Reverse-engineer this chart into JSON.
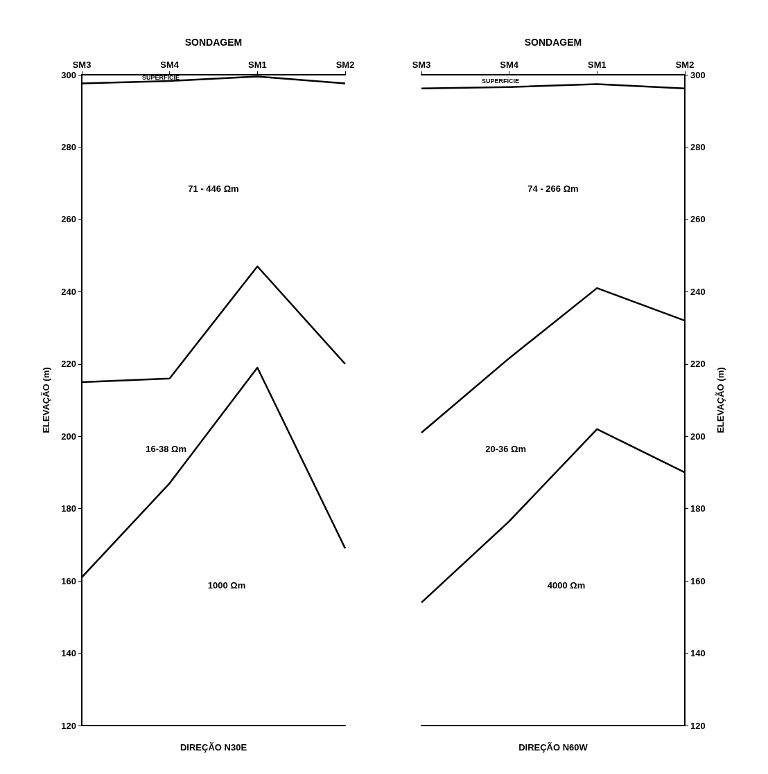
{
  "chart_data": [
    {
      "type": "line",
      "title": "SONDAGEM",
      "categories": [
        "SM3",
        "SM4",
        "SM1",
        "SM2"
      ],
      "xlabel": "DIREÇÃO N30E",
      "ylabel": "ELEVAÇÃO (m)",
      "ylim": [
        120,
        300
      ],
      "yticks": [
        120,
        140,
        160,
        180,
        200,
        220,
        240,
        260,
        280,
        300
      ],
      "marker": "none",
      "line_style": "solid",
      "grid": false,
      "series": [
        {
          "color": "#000000",
          "values": [
            297.6,
            298.3,
            299.5,
            297.6
          ]
        },
        {
          "color": "#000000",
          "values": [
            215,
            216,
            247,
            220
          ]
        },
        {
          "color": "#000000",
          "values": [
            161,
            187,
            219,
            169
          ]
        }
      ],
      "annotations": [
        "SUPERFICIE",
        "71 - 446 Ωm",
        "16-38 Ωm",
        "1000 Ωm"
      ]
    },
    {
      "type": "line",
      "title": "SONDAGEM",
      "categories": [
        "SM3",
        "SM4",
        "SM1",
        "SM2"
      ],
      "xlabel": "DIREÇÃO N60W",
      "y2label": "ELEVAÇÃO (m)",
      "y2lim": [
        120,
        300
      ],
      "y2ticks": [
        120,
        140,
        160,
        180,
        200,
        220,
        240,
        260,
        280,
        300
      ],
      "marker": "none",
      "line_style": "solid",
      "grid": false,
      "series": [
        {
          "color": "#000000",
          "axis": "y2",
          "values": [
            296.2,
            296.6,
            297.4,
            296.2
          ]
        },
        {
          "color": "#000000",
          "axis": "y2",
          "values": [
            201,
            221.6,
            241,
            232
          ]
        },
        {
          "color": "#000000",
          "axis": "y2",
          "values": [
            154,
            176.5,
            202,
            190
          ]
        }
      ],
      "annotations": [
        "SUPERFÍCIE",
        "74 - 266 Ωm",
        "20-36 Ωm",
        "4000 Ωm"
      ]
    }
  ]
}
